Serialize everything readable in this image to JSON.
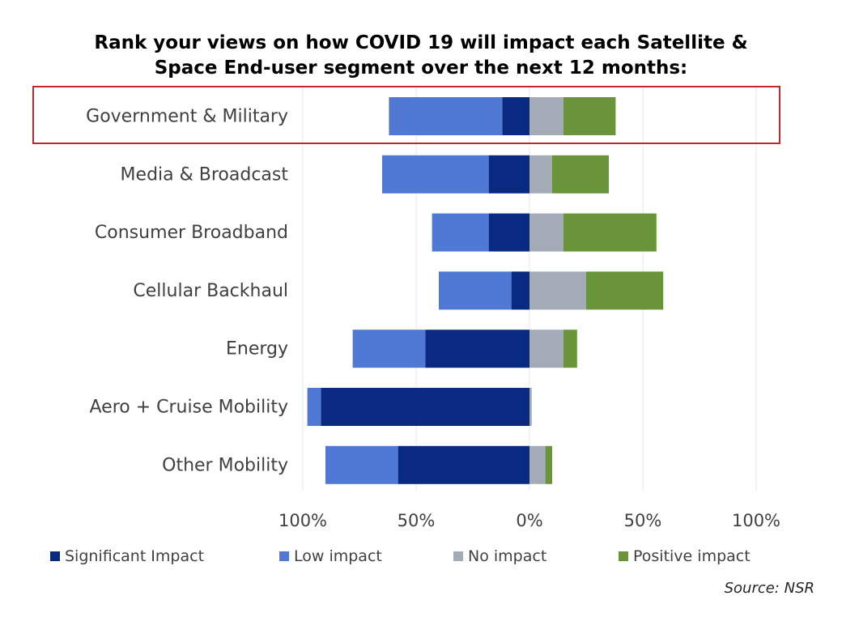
{
  "title_line1": "Rank your views on how COVID 19 will impact each Satellite &",
  "title_line2": "Space End-user segment over the next 12 months:",
  "source": "Source: NSR",
  "colors": {
    "significant": "#0a2a82",
    "low": "#4f79d4",
    "none": "#a2abb6",
    "positive": "#6a9439",
    "highlight": "#c0282e",
    "grid": "#e7e7e7"
  },
  "chart_data": {
    "type": "bar",
    "orientation": "horizontal",
    "stacked": "diverging",
    "categories": [
      "Government & Military",
      "Media & Broadcast",
      "Consumer Broadband",
      "Cellular Backhaul",
      "Energy",
      "Aero + Cruise Mobility",
      "Other Mobility"
    ],
    "highlighted_category": "Government & Military",
    "series": [
      {
        "name": "Significant Impact",
        "side": "negative",
        "values": [
          12,
          18,
          18,
          8,
          46,
          92,
          58
        ]
      },
      {
        "name": "Low impact",
        "side": "negative",
        "values": [
          50,
          47,
          25,
          32,
          32,
          6,
          32
        ]
      },
      {
        "name": "No impact",
        "side": "positive",
        "values": [
          15,
          10,
          15,
          25,
          15,
          1,
          7
        ]
      },
      {
        "name": "Positive impact",
        "side": "positive",
        "values": [
          23,
          25,
          41,
          34,
          6,
          0,
          3
        ]
      }
    ],
    "xlim": [
      -100,
      100
    ],
    "xticks": [
      {
        "value": -100,
        "label": "100%"
      },
      {
        "value": -50,
        "label": "50%"
      },
      {
        "value": 0,
        "label": "0%"
      },
      {
        "value": 50,
        "label": "50%"
      },
      {
        "value": 100,
        "label": "100%"
      }
    ],
    "grid": true,
    "legend_position": "bottom"
  }
}
